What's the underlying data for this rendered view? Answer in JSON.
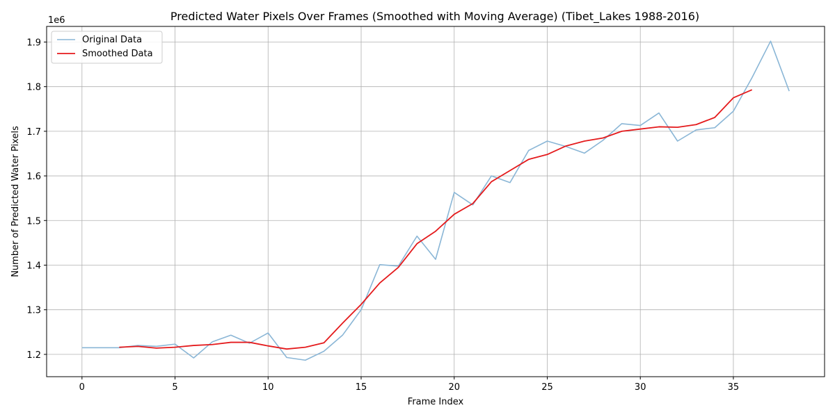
{
  "chart_data": {
    "type": "line",
    "title": "Predicted Water Pixels Over Frames (Smoothed with Moving Average) (Tibet_Lakes 1988-2016)",
    "xlabel": "Frame Index",
    "ylabel": "Number of Predicted Water Pixels",
    "y_offset_label": "1e6",
    "xlim": [
      -1.9,
      39.9
    ],
    "ylim": [
      1.15,
      1.935
    ],
    "x_ticks": [
      0,
      5,
      10,
      15,
      20,
      25,
      30,
      35
    ],
    "y_ticks": [
      1.2,
      1.3,
      1.4,
      1.5,
      1.6,
      1.7,
      1.8,
      1.9
    ],
    "grid": true,
    "legend_position": "upper-left",
    "series": [
      {
        "name": "Original Data",
        "color": "#8ab6d6",
        "x": [
          0,
          1,
          2,
          3,
          4,
          5,
          6,
          7,
          8,
          9,
          10,
          11,
          12,
          13,
          14,
          15,
          16,
          17,
          18,
          19,
          20,
          21,
          22,
          23,
          24,
          25,
          26,
          27,
          28,
          29,
          30,
          31,
          32,
          33,
          34,
          35,
          36,
          37,
          38
        ],
        "values": [
          1.215,
          1.215,
          1.215,
          1.22,
          1.218,
          1.223,
          1.192,
          1.228,
          1.243,
          1.225,
          1.248,
          1.193,
          1.187,
          1.207,
          1.243,
          1.3,
          1.401,
          1.398,
          1.465,
          1.413,
          1.563,
          1.535,
          1.6,
          1.585,
          1.657,
          1.678,
          1.666,
          1.651,
          1.68,
          1.717,
          1.713,
          1.741,
          1.678,
          1.703,
          1.708,
          1.745,
          1.82,
          1.902,
          1.79
        ]
      },
      {
        "name": "Smoothed Data",
        "color": "#e41a1c",
        "x": [
          2,
          3,
          4,
          5,
          6,
          7,
          8,
          9,
          10,
          11,
          12,
          13,
          14,
          15,
          16,
          17,
          18,
          19,
          20,
          21,
          22,
          23,
          24,
          25,
          26,
          27,
          28,
          29,
          30,
          31,
          32,
          33,
          34,
          35,
          36
        ],
        "values": [
          1.216,
          1.218,
          1.214,
          1.216,
          1.22,
          1.222,
          1.227,
          1.227,
          1.219,
          1.212,
          1.216,
          1.226,
          1.27,
          1.312,
          1.36,
          1.395,
          1.448,
          1.476,
          1.514,
          1.538,
          1.587,
          1.612,
          1.637,
          1.648,
          1.667,
          1.678,
          1.685,
          1.7,
          1.705,
          1.71,
          1.709,
          1.715,
          1.731,
          1.775,
          1.793
        ]
      }
    ]
  }
}
